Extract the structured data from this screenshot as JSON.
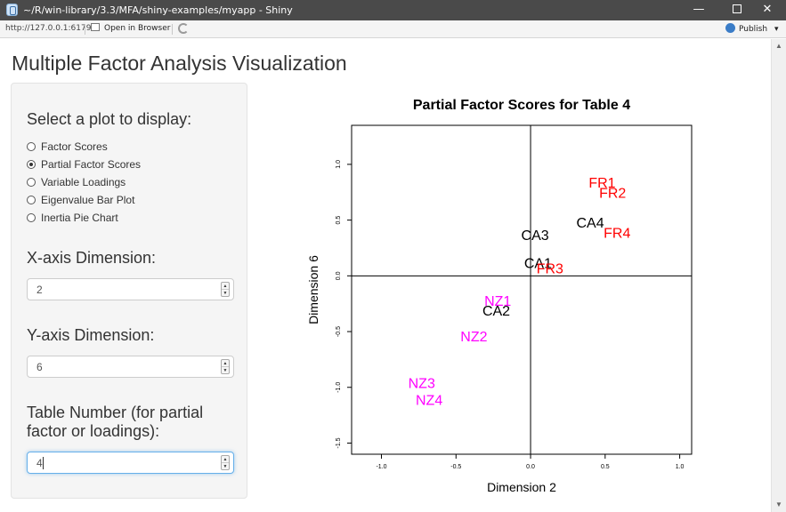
{
  "window": {
    "title": "~/R/win-library/3.3/MFA/shiny-examples/myapp - Shiny",
    "minimize_glyph": "—",
    "close_glyph": "✕"
  },
  "toolbar": {
    "url": "http://127.0.0.1:6179",
    "open_in_browser": "Open in Browser",
    "publish": "Publish",
    "publish_caret": "▾"
  },
  "page": {
    "title": "Multiple Factor Analysis Visualization"
  },
  "sidebar": {
    "plot_select_label": "Select a plot to display:",
    "plot_options": [
      {
        "label": "Factor Scores",
        "checked": false
      },
      {
        "label": "Partial Factor Scores",
        "checked": true
      },
      {
        "label": "Variable Loadings",
        "checked": false
      },
      {
        "label": "Eigenvalue Bar Plot",
        "checked": false
      },
      {
        "label": "Inertia Pie Chart",
        "checked": false
      }
    ],
    "x_axis_label": "X-axis Dimension:",
    "x_axis_value": "2",
    "y_axis_label": "Y-axis Dimension:",
    "y_axis_value": "6",
    "table_label_line1": "Table Number (for partial",
    "table_label_line2": "factor or loadings):",
    "table_value": "4"
  },
  "icons": {
    "spin_up": "▲",
    "spin_down": "▼",
    "scroll_up": "▲",
    "scroll_down": "▼"
  },
  "chart_data": {
    "type": "scatter",
    "title": "Partial Factor Scores for Table 4",
    "xlabel": "Dimension 2",
    "ylabel": "Dimension 6",
    "xlim": [
      -1.2,
      1.08
    ],
    "ylim": [
      -1.6,
      1.35
    ],
    "xticks": [
      -1.0,
      -0.5,
      0.0,
      0.5,
      1.0
    ],
    "yticks": [
      -1.5,
      -1.0,
      -0.5,
      0.0,
      0.5,
      1.0
    ],
    "reference_lines": {
      "x": 0,
      "y": 0
    },
    "series": [
      {
        "color": "#000000",
        "points": [
          {
            "label": "CA1",
            "x": 0.05,
            "y": 0.12
          },
          {
            "label": "CA2",
            "x": -0.23,
            "y": -0.31
          },
          {
            "label": "CA3",
            "x": 0.03,
            "y": 0.37
          },
          {
            "label": "CA4",
            "x": 0.4,
            "y": 0.48
          }
        ]
      },
      {
        "color": "#ff0000",
        "points": [
          {
            "label": "FR1",
            "x": 0.48,
            "y": 0.84
          },
          {
            "label": "FR2",
            "x": 0.55,
            "y": 0.75
          },
          {
            "label": "FR3",
            "x": 0.13,
            "y": 0.07
          },
          {
            "label": "FR4",
            "x": 0.58,
            "y": 0.39
          }
        ]
      },
      {
        "color": "#ff00ff",
        "points": [
          {
            "label": "NZ1",
            "x": -0.22,
            "y": -0.22
          },
          {
            "label": "NZ2",
            "x": -0.38,
            "y": -0.54
          },
          {
            "label": "NZ3",
            "x": -0.73,
            "y": -0.96
          },
          {
            "label": "NZ4",
            "x": -0.68,
            "y": -1.11
          }
        ]
      }
    ]
  }
}
